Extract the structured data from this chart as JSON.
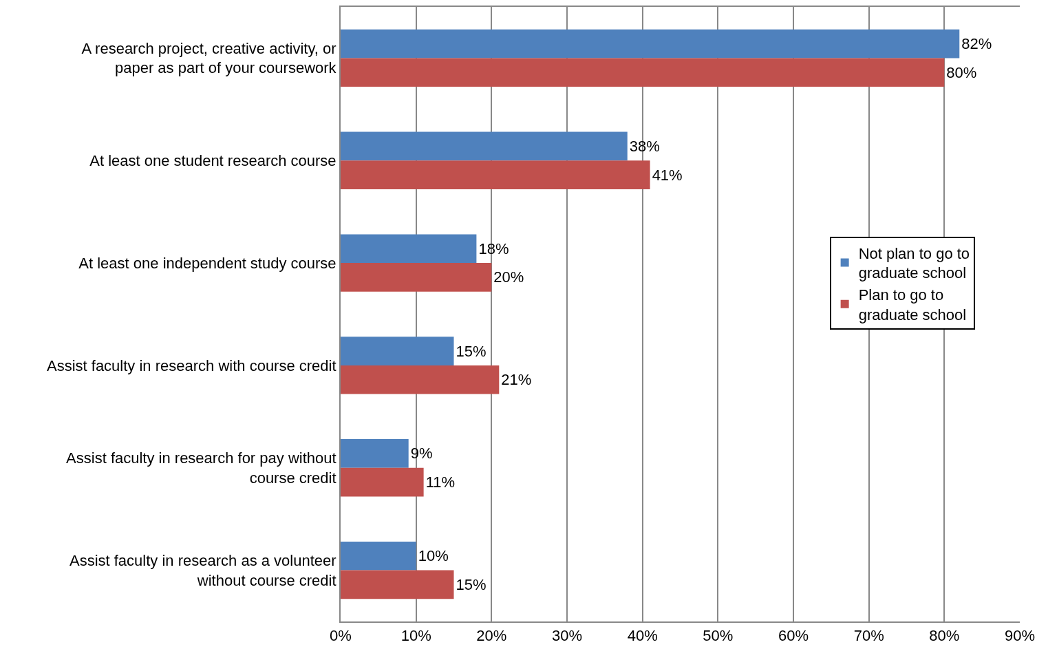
{
  "chart_data": {
    "type": "bar",
    "orientation": "horizontal",
    "categories": [
      "A research project, creative activity, or paper as part of your coursework",
      "At least one student research course",
      "At least one independent study course",
      "Assist faculty in research with course credit",
      "Assist faculty in research for pay without course credit",
      "Assist faculty in research as a volunteer without course credit"
    ],
    "series": [
      {
        "name": "Not plan to go to graduate school",
        "color": "#4f81bd",
        "values": [
          82,
          38,
          18,
          15,
          9,
          10
        ],
        "value_labels": [
          "82%",
          "38%",
          "18%",
          "15%",
          "9%",
          "10%"
        ]
      },
      {
        "name": "Plan to go to graduate school",
        "color": "#c0504d",
        "values": [
          80,
          41,
          20,
          21,
          11,
          15
        ],
        "value_labels": [
          "80%",
          "41%",
          "20%",
          "21%",
          "11%",
          "15%"
        ]
      }
    ],
    "xlim": [
      0,
      90
    ],
    "xticks": [
      {
        "value": 0,
        "label": "0%"
      },
      {
        "value": 10,
        "label": "10%"
      },
      {
        "value": 20,
        "label": "20%"
      },
      {
        "value": 30,
        "label": "30%"
      },
      {
        "value": 40,
        "label": "40%"
      },
      {
        "value": 50,
        "label": "50%"
      },
      {
        "value": 60,
        "label": "60%"
      },
      {
        "value": 70,
        "label": "70%"
      },
      {
        "value": 80,
        "label": "80%"
      },
      {
        "value": 90,
        "label": "90%"
      }
    ],
    "grid": "x",
    "legend": "right"
  }
}
